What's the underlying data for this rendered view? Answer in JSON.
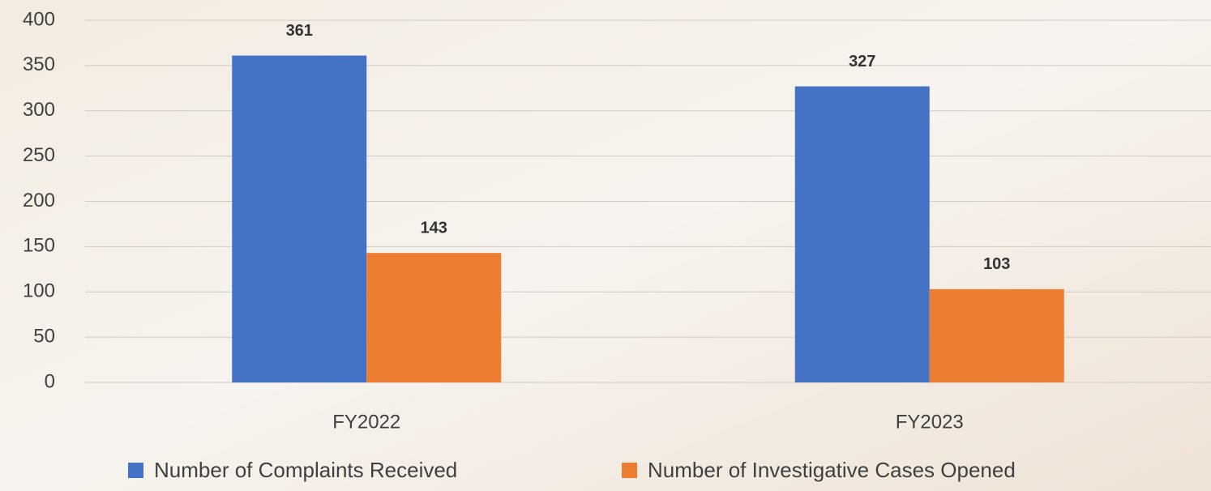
{
  "chart_data": {
    "type": "bar",
    "categories": [
      "FY2022",
      "FY2023"
    ],
    "series": [
      {
        "name": "Number of Complaints Received",
        "color": "#4472c4",
        "values": [
          361,
          327
        ]
      },
      {
        "name": "Number of Investigative Cases Opened",
        "color": "#ed7d31",
        "values": [
          143,
          103
        ]
      }
    ],
    "ylim": [
      0,
      400
    ],
    "yticks": [
      0,
      50,
      100,
      150,
      200,
      250,
      300,
      350,
      400
    ],
    "grid": true
  }
}
